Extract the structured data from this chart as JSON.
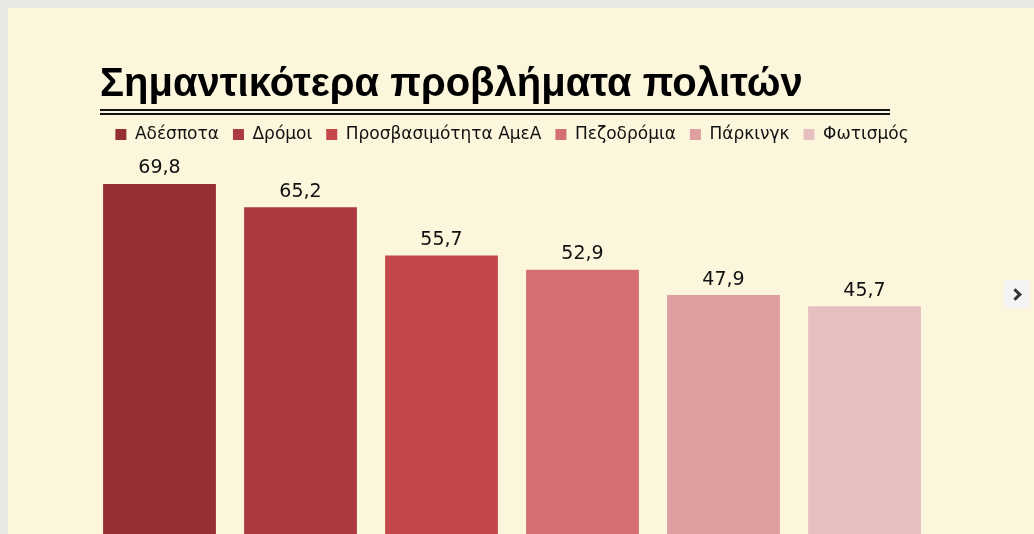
{
  "chart_data": {
    "type": "bar",
    "title": "Σημαντικότερα προβλήματα πολιτών",
    "categories": [
      null
    ],
    "series": [
      {
        "name": "Αδέσποτα",
        "color": "#952f35",
        "values": [
          69.8
        ],
        "value_labels": [
          "69,8"
        ]
      },
      {
        "name": "Δρόμοι",
        "color": "#ad3a40",
        "values": [
          65.2
        ],
        "value_labels": [
          "65,2"
        ]
      },
      {
        "name": "Προσβασιμότητα ΑμεΑ",
        "color": "#c4474b",
        "values": [
          55.7
        ],
        "value_labels": [
          "55,7"
        ]
      },
      {
        "name": "Πεζοδρόμια",
        "color": "#d47074",
        "values": [
          52.9
        ],
        "value_labels": [
          "52,9"
        ]
      },
      {
        "name": "Πάρκινγκ",
        "color": "#df9fa0",
        "values": [
          47.9
        ],
        "value_labels": [
          "47,9"
        ]
      },
      {
        "name": "Φωτισμός",
        "color": "#e8bfc0",
        "values": [
          45.7
        ],
        "value_labels": [
          "45,7"
        ]
      }
    ],
    "legend": "top",
    "tick_labels": false
  }
}
